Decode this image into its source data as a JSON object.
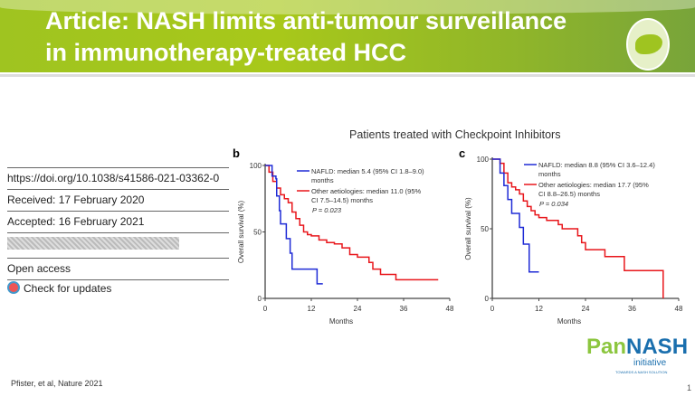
{
  "header": {
    "title_line1": "Article: NASH limits anti-tumour surveillance",
    "title_line2": "in immunotherapy-treated HCC"
  },
  "subtitle": "Patients treated with Checkpoint Inhibitors",
  "article_info": {
    "doi": "https://doi.org/10.1038/s41586-021-03362-0",
    "received": "Received: 17 February 2020",
    "accepted": "Accepted: 16 February 2021",
    "open_access": "Open access",
    "check_updates": "Check for updates"
  },
  "footer": {
    "citation": "Pfister, et al, Nature 2021",
    "page": "1"
  },
  "logo": {
    "part1": "Pan",
    "part2": "NASH",
    "sub": "initiative",
    "tagline": "TOWARDS A NASH SOLUTION"
  },
  "colors": {
    "nafld": "#1f2bd6",
    "other": "#e8161b",
    "banner": "#9fc420"
  },
  "chart_data": [
    {
      "type": "line",
      "panel": "b",
      "xlabel": "Months",
      "ylabel": "Overall survival (%)",
      "xlim": [
        0,
        48
      ],
      "ylim": [
        0,
        100
      ],
      "xticks": [
        "0",
        "12",
        "24",
        "36",
        "48"
      ],
      "yticks": [
        "0",
        "50",
        "100"
      ],
      "series": [
        {
          "name": "NAFLD: median 5.4 (95% CI 1.8–9.0) months",
          "color": "#1f2bd6",
          "x": [
            0,
            1.8,
            2.8,
            3,
            3.7,
            4,
            5.5,
            6.5,
            7,
            13.5,
            15
          ],
          "y": [
            100,
            92,
            90,
            77,
            66,
            56,
            45,
            34,
            22,
            11,
            11
          ]
        },
        {
          "name": "Other aetiologies: median 11.0 (95% CI 7.5–14.5) months",
          "color": "#e8161b",
          "x": [
            0,
            1,
            2,
            3,
            4,
            5,
            6,
            7,
            8,
            9,
            10,
            11,
            12,
            14,
            16,
            18,
            20,
            22,
            24,
            27,
            28,
            30,
            34,
            45
          ],
          "y": [
            100,
            95,
            88,
            83,
            78,
            75,
            72,
            65,
            60,
            55,
            50,
            48,
            47,
            44,
            42,
            41,
            38,
            33,
            31,
            27,
            22,
            18,
            14,
            14
          ]
        }
      ],
      "annotation": "P = 0.023"
    },
    {
      "type": "line",
      "panel": "c",
      "xlabel": "Months",
      "ylabel": "Overall survival (%)",
      "xlim": [
        0,
        48
      ],
      "ylim": [
        0,
        100
      ],
      "xticks": [
        "0",
        "12",
        "24",
        "36",
        "48"
      ],
      "yticks": [
        "0",
        "50",
        "100"
      ],
      "series": [
        {
          "name": "NAFLD: median 8.8 (95% CI 3.6–12.4) months",
          "color": "#1f2bd6",
          "x": [
            0,
            2,
            3,
            4,
            5,
            7,
            8,
            9.5,
            12
          ],
          "y": [
            100,
            90,
            81,
            71,
            61,
            51,
            39,
            19,
            19
          ]
        },
        {
          "name": "Other aetiologies: median 17.7 (95% CI 8.8–26.5) months",
          "color": "#e8161b",
          "x": [
            0,
            2,
            3,
            4,
            5,
            6,
            7,
            8,
            9,
            10,
            11,
            12,
            14,
            17,
            18,
            21,
            22,
            23,
            24,
            29,
            34,
            44
          ],
          "y": [
            100,
            97,
            90,
            83,
            80,
            78,
            75,
            70,
            66,
            63,
            60,
            58,
            56,
            53,
            50,
            50,
            45,
            40,
            35,
            30,
            20,
            0
          ]
        }
      ],
      "annotation": "P = 0.034"
    }
  ]
}
